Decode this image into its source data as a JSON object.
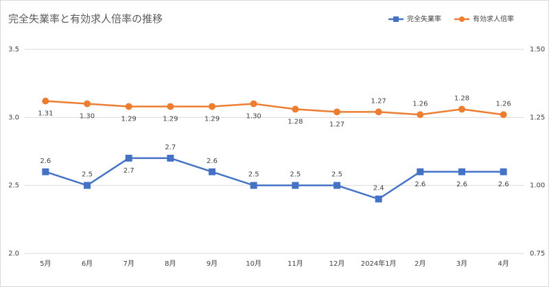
{
  "chart_data": {
    "type": "line",
    "title": "完全失業率と有効求人倍率の推移",
    "categories": [
      "5月",
      "6月",
      "7月",
      "8月",
      "9月",
      "10月",
      "11月",
      "12月",
      "2024年1月",
      "2月",
      "3月",
      "4月"
    ],
    "series": [
      {
        "name": "完全失業率",
        "color": "#4472c4",
        "marker": "square",
        "values": [
          2.6,
          2.5,
          2.7,
          2.7,
          2.6,
          2.5,
          2.5,
          2.5,
          2.4,
          2.6,
          2.6,
          2.6
        ]
      },
      {
        "name": "有効求人倍率",
        "color": "#ed7d31",
        "marker": "circle",
        "axis": "y2",
        "values": [
          1.31,
          1.3,
          1.29,
          1.29,
          1.29,
          1.3,
          1.28,
          1.27,
          1.27,
          1.26,
          1.28,
          1.26
        ],
        "value_labels": [
          "1.31",
          "1.30",
          "1.29",
          "1.29",
          "1.29",
          "1.30",
          "1.28",
          "1.27",
          "1.27",
          "1.26",
          "1.28",
          "1.26"
        ]
      }
    ],
    "ylim": [
      2,
      3.5
    ],
    "yticks": [
      {
        "value": 2,
        "label": "2.0"
      },
      2.5,
      {
        "value": 3,
        "label": "3.0"
      },
      3.5
    ],
    "y2lim": [
      0.75,
      1.5
    ],
    "y2ticks": [
      0.75,
      {
        "value": 1,
        "label": "1.00"
      },
      1.25,
      {
        "value": 1.5,
        "label": "1.50"
      }
    ],
    "grid": true,
    "legend": "top-right"
  }
}
